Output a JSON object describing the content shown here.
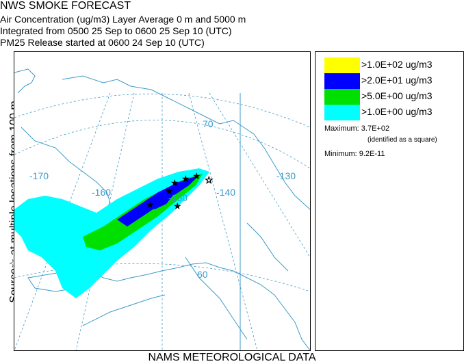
{
  "header": {
    "title": "NWS SMOKE FORECAST",
    "line2": "Air Concentration (ug/m3) Layer Average    0 m and  5000 m",
    "line3": "Integrated from 0500 25 Sep to 0600 25 Sep 10 (UTC)",
    "line4": "PM25 Release started at 0600 24 Sep 10 (UTC)"
  },
  "side_label": "Source☆ at multiple locations from 100 m",
  "footer": "NAMS METEOROLOGICAL DATA",
  "legend": {
    "items": [
      {
        "label": ">1.0E+02 ug/m3",
        "color": "#ffff00"
      },
      {
        "label": ">2.0E+01 ug/m3",
        "color": "#0000ff"
      },
      {
        "label": ">5.0E+00 ug/m3",
        "color": "#00e000"
      },
      {
        "label": ">1.0E+00 ug/m3",
        "color": "#00ffff"
      }
    ],
    "maximum": "Maximum: 3.7E+02",
    "maximum_note": "(identified as a square)",
    "minimum": "Minimum: 9.2E-11"
  },
  "map": {
    "graticule_labels": {
      "lon_170": "-170",
      "lon_160": "-160",
      "lon_150": "-150",
      "lon_140": "-140",
      "lon_130": "-130",
      "lat_70": "70",
      "lat_60": "60"
    },
    "colors": {
      "coast": "#3b9ac9",
      "graticule": "#3b9ac9"
    }
  }
}
